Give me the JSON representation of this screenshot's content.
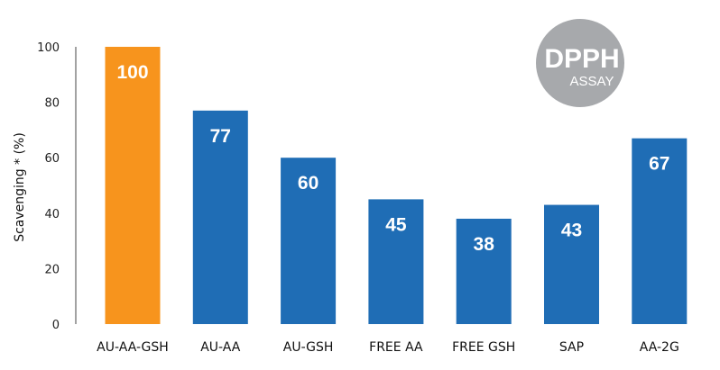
{
  "chart_data": {
    "type": "bar",
    "categories": [
      "AU-AA-GSH",
      "AU-AA",
      "AU-GSH",
      "FREE AA",
      "FREE GSH",
      "SAP",
      "AA-2G"
    ],
    "values": [
      100,
      77,
      60,
      45,
      38,
      43,
      67
    ],
    "data_labels": [
      "100",
      "77",
      "60",
      "45",
      "38",
      "43",
      "67"
    ],
    "ylabel": "Scavenging *  (%)",
    "xlabel": "",
    "ylim": [
      0,
      100
    ],
    "yticks": [
      0,
      20,
      40,
      60,
      80,
      100
    ],
    "grid": false,
    "colors": {
      "highlight": "#F7941D",
      "default": "#1F6DB5",
      "highlight_category": "AU-AA-GSH"
    }
  },
  "badge": {
    "title": "DPPH",
    "subtitle": "ASSAY",
    "color": "#A7A9AC"
  }
}
